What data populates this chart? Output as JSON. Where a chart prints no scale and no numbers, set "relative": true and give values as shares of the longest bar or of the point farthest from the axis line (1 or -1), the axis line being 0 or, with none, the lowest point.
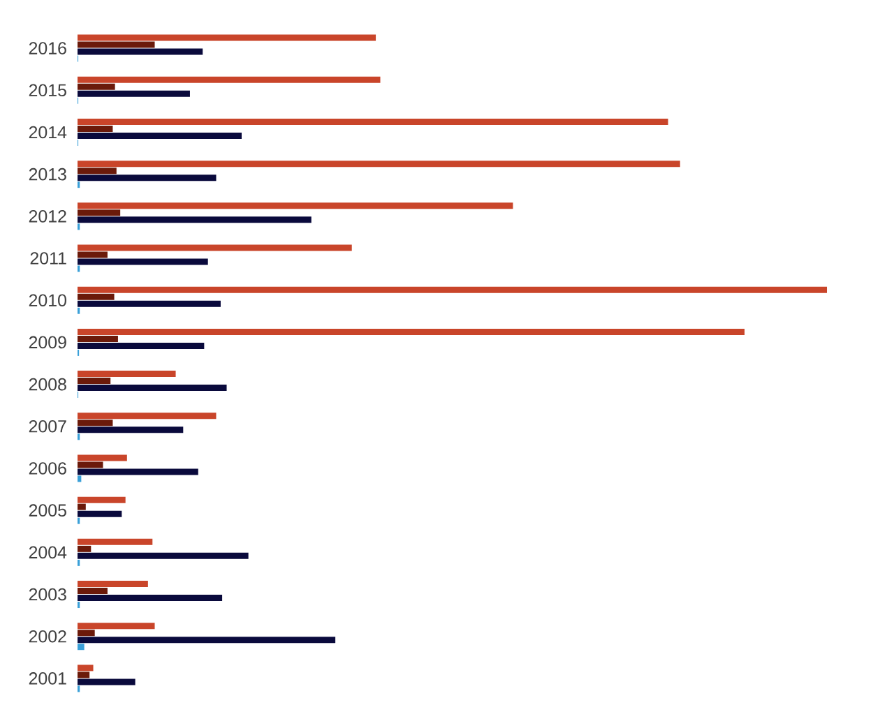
{
  "chart_data": {
    "type": "bar",
    "orientation": "horizontal",
    "relative": true,
    "categories": [
      "2016",
      "2015",
      "2014",
      "2013",
      "2012",
      "2011",
      "2010",
      "2009",
      "2008",
      "2007",
      "2006",
      "2005",
      "2004",
      "2003",
      "2002",
      "2001"
    ],
    "series": [
      {
        "color": "#c9452a",
        "values": [
          0.398,
          0.404,
          0.788,
          0.804,
          0.581,
          0.366,
          1,
          0.89,
          0.131,
          0.185,
          0.066,
          0.064,
          0.1,
          0.094,
          0.103,
          0.021
        ]
      },
      {
        "color": "#6b1a0a",
        "values": [
          0.103,
          0.05,
          0.047,
          0.052,
          0.057,
          0.04,
          0.049,
          0.054,
          0.044,
          0.047,
          0.034,
          0.011,
          0.018,
          0.04,
          0.023,
          0.016
        ]
      },
      {
        "color": "#0a0a3c",
        "values": [
          0.167,
          0.15,
          0.219,
          0.185,
          0.312,
          0.174,
          0.191,
          0.169,
          0.199,
          0.141,
          0.161,
          0.059,
          0.228,
          0.193,
          0.344,
          0.077
        ]
      },
      {
        "color": "#3aa0d8",
        "values": [
          0.001,
          0.001,
          0.001,
          0.003,
          0.003,
          0.003,
          0.003,
          0.002,
          0.001,
          0.003,
          0.005,
          0.003,
          0.003,
          0.003,
          0.009,
          0.003
        ]
      }
    ]
  }
}
